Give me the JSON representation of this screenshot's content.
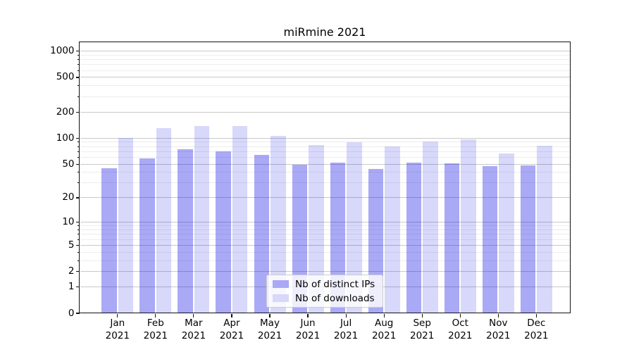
{
  "title": "miRmine 2021",
  "chart_data": {
    "type": "bar",
    "title": "miRmine 2021",
    "y_scale": "log1p",
    "ylim": [
      0,
      1266
    ],
    "grid": true,
    "legend_position": "lower center",
    "year_label": "2021",
    "categories": [
      "Jan",
      "Feb",
      "Mar",
      "Apr",
      "May",
      "Jun",
      "Jul",
      "Aug",
      "Sep",
      "Oct",
      "Nov",
      "Dec"
    ],
    "series": [
      {
        "name": "Nb of distinct IPs",
        "bar_color": "rgba(10,10,230,0.35)",
        "legend_color": "#a9a9f6",
        "values": [
          45,
          58,
          75,
          71,
          64,
          49,
          52,
          44,
          52,
          51,
          47,
          48
        ]
      },
      {
        "name": "Nb of downloads",
        "bar_color": "rgba(10,10,230,0.16)",
        "legend_color": "#d8d8fb",
        "values": [
          100,
          131,
          138,
          137,
          106,
          84,
          90,
          81,
          92,
          96,
          66,
          82
        ]
      }
    ],
    "y_ticks": [
      0,
      1,
      2,
      5,
      10,
      20,
      50,
      100,
      200,
      500,
      1000
    ],
    "y_minor_ticks": [
      3,
      4,
      6,
      7,
      8,
      9,
      30,
      40,
      60,
      70,
      80,
      90,
      300,
      400,
      600,
      700,
      800,
      900
    ]
  }
}
